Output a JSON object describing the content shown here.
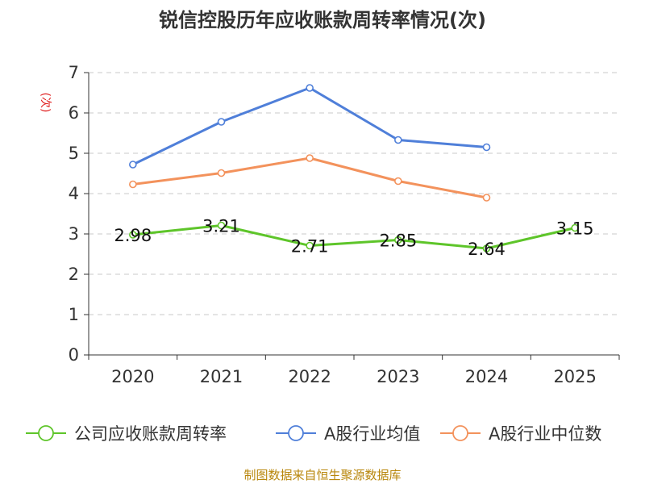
{
  "chart_data": {
    "type": "line",
    "title": "锐信控股历年应收账款周转率情况(次)",
    "ylabel": "(次)",
    "xlabel": "",
    "categories": [
      "2020",
      "2021",
      "2022",
      "2023",
      "2024",
      "2025"
    ],
    "ylim": [
      0,
      7
    ],
    "yticks": [
      0,
      1,
      2,
      3,
      4,
      5,
      6,
      7
    ],
    "grid": true,
    "legend_position": "bottom",
    "series": [
      {
        "name": "公司应收账款周转率",
        "color": "#5ec52a",
        "values": [
          2.98,
          3.21,
          2.71,
          2.85,
          2.64,
          3.15
        ],
        "labels": [
          "2.98",
          "3.21",
          "2.71",
          "2.85",
          "2.64",
          "3.15"
        ]
      },
      {
        "name": "A股行业均值",
        "color": "#4f7fd9",
        "values": [
          4.72,
          5.78,
          6.62,
          5.33,
          5.15,
          null
        ]
      },
      {
        "name": "A股行业中位数",
        "color": "#f3925c",
        "values": [
          4.23,
          4.51,
          4.88,
          4.31,
          3.9,
          null
        ]
      }
    ],
    "source": "制图数据来自恒生聚源数据库"
  }
}
